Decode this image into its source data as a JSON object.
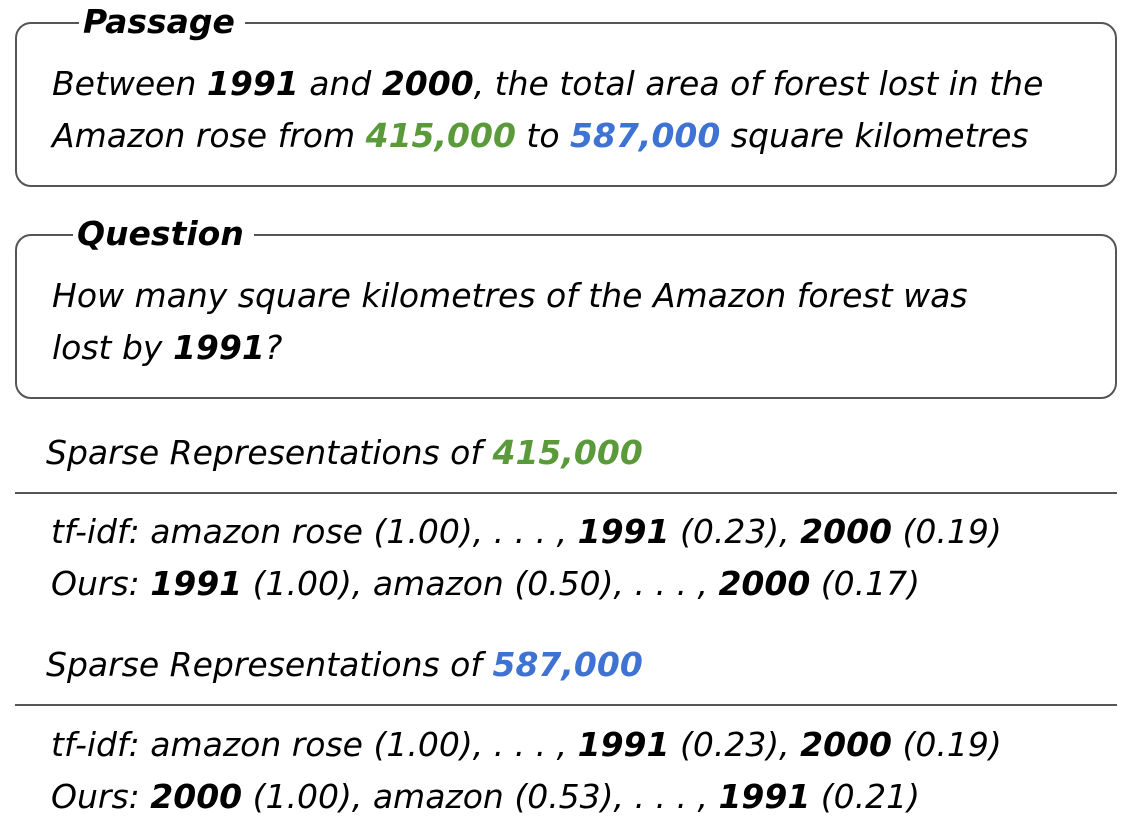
{
  "passage": {
    "title": "Passage",
    "line1": {
      "t1": "Between ",
      "y1": "1991",
      "t2": " and ",
      "y2": "2000",
      "t3": ", the total area of forest lost in the"
    },
    "line2": {
      "t1": "Amazon rose from ",
      "n1": "415,000",
      "t2": " to ",
      "n2": "587,000",
      "t3": " square kilometres"
    }
  },
  "question": {
    "title": "Question",
    "line1": "How many square kilometres of the Amazon forest was",
    "line2": {
      "t1": "lost by ",
      "y1": "1991",
      "t2": "?"
    }
  },
  "sections": [
    {
      "heading_prefix": "Sparse Representations of ",
      "heading_number": "415,000",
      "tfidf": {
        "t1": "tf-idf: amazon rose (1.00), . . . , ",
        "b1": "1991",
        "t2": " (0.23), ",
        "b2": "2000",
        "t3": " (0.19)"
      },
      "ours": {
        "t1": "Ours: ",
        "b1": "1991",
        "t2": " (1.00), amazon (0.50), . . . , ",
        "b2": "2000",
        "t3": " (0.17)"
      }
    },
    {
      "heading_prefix": "Sparse Representations of ",
      "heading_number": "587,000",
      "tfidf": {
        "t1": "tf-idf: amazon rose (1.00), . . . , ",
        "b1": "1991",
        "t2": " (0.23), ",
        "b2": "2000",
        "t3": " (0.19)"
      },
      "ours": {
        "t1": "Ours: ",
        "b1": "2000",
        "t2": " (1.00), amazon (0.53), . . . , ",
        "b2": "1991",
        "t3": " (0.21)"
      }
    }
  ],
  "colors": {
    "number_green": "#5a9a3a",
    "number_blue": "#3f73d3",
    "border": "#555555"
  }
}
